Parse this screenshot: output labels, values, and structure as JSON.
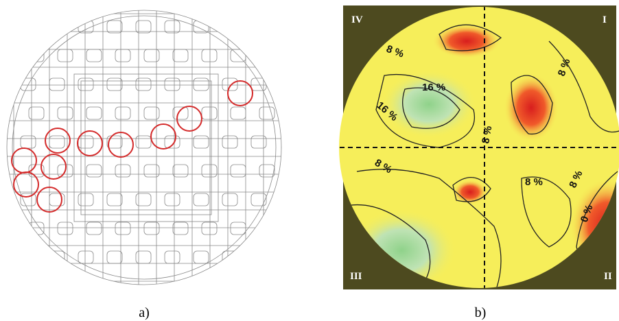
{
  "panels": [
    {
      "caption": "a)"
    },
    {
      "caption": "b)",
      "quadrants": [
        "IV",
        "I",
        "III",
        "II"
      ],
      "contour_labels": [
        "8 %",
        "16 %",
        "16 %",
        "8 %",
        "8 %",
        "8 %",
        "8 %",
        "8 %",
        "0 %"
      ]
    }
  ]
}
